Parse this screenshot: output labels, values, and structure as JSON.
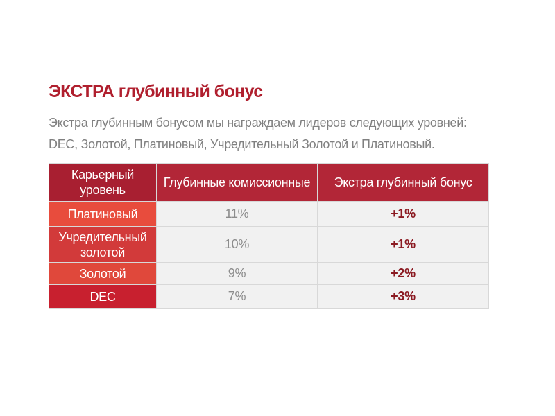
{
  "title": "ЭКСТРА глубинный бонус",
  "description": "Экстра глубинным бонусом мы награждаем лидеров следующих уровней: DEC, Золотой, Платиновый, Учредительный Золотой и Платиновый.",
  "table": {
    "headers": [
      "Карьерный уровень",
      "Глубинные комиссионные",
      "Экстра глубинный бонус"
    ],
    "rows": [
      {
        "level": "Платиновый",
        "commission": "11%",
        "extra": "+1%"
      },
      {
        "level": "Учредительный золотой",
        "commission": "10%",
        "extra": "+1%"
      },
      {
        "level": "Золотой",
        "commission": "9%",
        "extra": "+2%"
      },
      {
        "level": "DEC",
        "commission": "7%",
        "extra": "+3%"
      }
    ]
  },
  "colors": {
    "title": "#b01f2e",
    "header_bg": "#b22637",
    "extra_text": "#8b1a22",
    "cell_bg": "#f1f1f1"
  }
}
